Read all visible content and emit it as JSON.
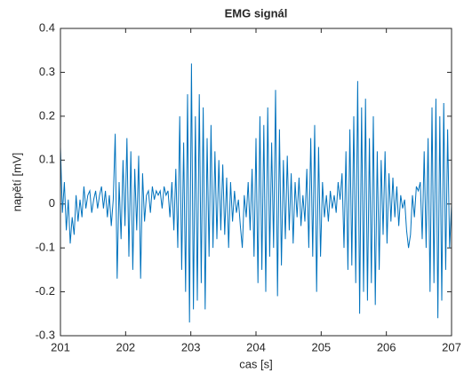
{
  "chart_data": {
    "type": "line",
    "title": "EMG signál",
    "xlabel": "cas [s]",
    "ylabel": "napětí [mV]",
    "color": "#0072bd",
    "grid": false,
    "box": true,
    "xlim": [
      201,
      207
    ],
    "ylim": [
      -0.3,
      0.4
    ],
    "xticks": [
      201,
      202,
      203,
      204,
      205,
      206,
      207
    ],
    "yticks": [
      -0.3,
      -0.2,
      -0.1,
      0,
      0.1,
      0.2,
      0.3,
      0.4
    ],
    "x": [
      201,
      201.03,
      201.06,
      201.09,
      201.12,
      201.15,
      201.18,
      201.21,
      201.24,
      201.27,
      201.3,
      201.33,
      201.36,
      201.39,
      201.42,
      201.45,
      201.48,
      201.51,
      201.54,
      201.57,
      201.6,
      201.63,
      201.66,
      201.69,
      201.72,
      201.75,
      201.78,
      201.81,
      201.84,
      201.87,
      201.9,
      201.93,
      201.96,
      201.99,
      202.02,
      202.05,
      202.08,
      202.11,
      202.14,
      202.17,
      202.2,
      202.23,
      202.26,
      202.29,
      202.32,
      202.35,
      202.38,
      202.41,
      202.44,
      202.47,
      202.5,
      202.53,
      202.56,
      202.59,
      202.62,
      202.65,
      202.68,
      202.71,
      202.74,
      202.77,
      202.8,
      202.83,
      202.86,
      202.89,
      202.92,
      202.95,
      202.98,
      203.01,
      203.04,
      203.07,
      203.1,
      203.13,
      203.16,
      203.19,
      203.22,
      203.25,
      203.28,
      203.31,
      203.34,
      203.37,
      203.4,
      203.43,
      203.46,
      203.49,
      203.52,
      203.55,
      203.58,
      203.61,
      203.64,
      203.67,
      203.7,
      203.73,
      203.76,
      203.79,
      203.82,
      203.85,
      203.88,
      203.91,
      203.94,
      203.97,
      204,
      204.03,
      204.06,
      204.09,
      204.12,
      204.15,
      204.18,
      204.21,
      204.24,
      204.27,
      204.3,
      204.33,
      204.36,
      204.39,
      204.42,
      204.45,
      204.48,
      204.51,
      204.54,
      204.57,
      204.6,
      204.63,
      204.66,
      204.69,
      204.72,
      204.75,
      204.78,
      204.81,
      204.84,
      204.87,
      204.9,
      204.93,
      204.96,
      204.99,
      205.02,
      205.05,
      205.08,
      205.11,
      205.14,
      205.17,
      205.2,
      205.23,
      205.26,
      205.29,
      205.32,
      205.35,
      205.38,
      205.41,
      205.44,
      205.47,
      205.5,
      205.53,
      205.56,
      205.59,
      205.62,
      205.65,
      205.68,
      205.71,
      205.74,
      205.77,
      205.8,
      205.83,
      205.86,
      205.89,
      205.92,
      205.95,
      205.98,
      206.01,
      206.04,
      206.07,
      206.1,
      206.13,
      206.16,
      206.19,
      206.22,
      206.25,
      206.28,
      206.31,
      206.34,
      206.37,
      206.4,
      206.43,
      206.46,
      206.49,
      206.52,
      206.55,
      206.58,
      206.61,
      206.64,
      206.67,
      206.7,
      206.73,
      206.76,
      206.79,
      206.82,
      206.85,
      206.88,
      206.91,
      206.94,
      206.97,
      207
    ],
    "values": [
      0.13,
      -0.02,
      0.05,
      -0.06,
      0.01,
      -0.09,
      -0.03,
      -0.07,
      0.02,
      -0.04,
      0.01,
      -0.03,
      0.04,
      -0.01,
      0.02,
      0.03,
      -0.02,
      0.01,
      0.03,
      -0.01,
      0.02,
      0.04,
      -0.01,
      0.03,
      -0.03,
      0.02,
      -0.05,
      0.01,
      0.16,
      -0.17,
      0.05,
      -0.08,
      0.1,
      -0.05,
      0.15,
      -0.12,
      0.12,
      -0.15,
      0.08,
      -0.06,
      0.11,
      -0.17,
      0.07,
      -0.04,
      0.02,
      0.03,
      -0.02,
      0.04,
      0.01,
      0.03,
      0.02,
      0.03,
      -0.01,
      0.04,
      0.02,
      0.03,
      -0.03,
      0.05,
      -0.06,
      0.08,
      -0.1,
      0.2,
      -0.15,
      0.14,
      -0.2,
      0.25,
      -0.27,
      0.32,
      -0.24,
      0.2,
      -0.22,
      0.25,
      -0.18,
      0.22,
      -0.24,
      0.15,
      -0.12,
      0.18,
      -0.1,
      0.12,
      -0.08,
      0.1,
      -0.06,
      0.09,
      -0.07,
      0.06,
      -0.1,
      0.05,
      -0.04,
      0.03,
      -0.02,
      0.01,
      -0.05,
      -0.1,
      0.02,
      -0.03,
      0.05,
      -0.06,
      0.08,
      -0.12,
      0.15,
      -0.18,
      0.2,
      -0.15,
      0.18,
      -0.2,
      0.22,
      -0.12,
      0.14,
      -0.1,
      0.26,
      -0.21,
      0.17,
      -0.14,
      0.1,
      -0.08,
      0.11,
      -0.06,
      0.07,
      -0.09,
      0.05,
      -0.03,
      0.06,
      -0.05,
      0.02,
      -0.04,
      0.08,
      -0.1,
      0.15,
      -0.12,
      0.18,
      -0.2,
      0.13,
      -0.12,
      0.05,
      -0.03,
      0.02,
      -0.04,
      0.03,
      -0.01,
      0.02,
      -0.02,
      0.05,
      0.01,
      0.07,
      -0.1,
      0.12,
      -0.15,
      0.17,
      -0.14,
      0.2,
      -0.18,
      0.28,
      -0.25,
      0.22,
      -0.2,
      0.24,
      -0.22,
      0.15,
      -0.18,
      0.2,
      -0.23,
      0.12,
      -0.15,
      0.1,
      -0.07,
      0.12,
      -0.09,
      0.07,
      -0.04,
      0.06,
      -0.03,
      0.04,
      -0.05,
      0.02,
      -0.01,
      0.01,
      -0.06,
      -0.1,
      -0.07,
      0.02,
      -0.03,
      0.04,
      0.03,
      0.05,
      -0.08,
      0.12,
      -0.1,
      0.15,
      -0.2,
      0.22,
      -0.18,
      0.24,
      -0.26,
      0.2,
      -0.22,
      0.23,
      -0.15,
      0.17,
      -0.1,
      0
    ]
  }
}
